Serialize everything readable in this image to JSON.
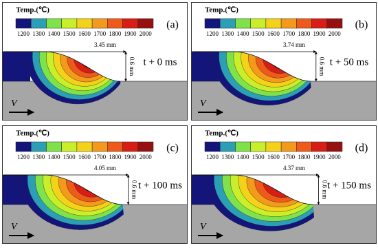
{
  "legend": {
    "title": "Temp.(℃)",
    "ticks": [
      "1200",
      "1300",
      "1400",
      "1500",
      "1600",
      "1700",
      "1800",
      "1900",
      "2000"
    ],
    "colors": [
      "#14157a",
      "#2b9fb5",
      "#7fe24a",
      "#c9ee2a",
      "#f5d21a",
      "#f39a1c",
      "#ee5a1a",
      "#d81e14",
      "#961010"
    ]
  },
  "panels": [
    {
      "label": "(a)",
      "length": "3.45 mm",
      "depth": "0.6 mm",
      "time": "t + 0 ms",
      "velocity": "V"
    },
    {
      "label": "(b)",
      "length": "3.74 mm",
      "depth": "0.6 mm",
      "time": "t + 50 ms",
      "velocity": "V"
    },
    {
      "label": "(c)",
      "length": "4.05 mm",
      "depth": "0.6 mm",
      "time": "t + 100 ms",
      "velocity": "V"
    },
    {
      "label": "(d)",
      "length": "4.37 mm",
      "depth": "0.6 mm",
      "time": "t + 150 ms",
      "velocity": "V"
    }
  ]
}
